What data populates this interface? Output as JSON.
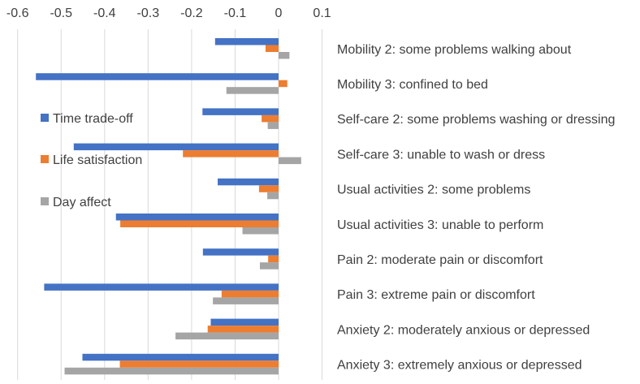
{
  "chart_data": {
    "type": "bar",
    "orientation": "horizontal",
    "title": "",
    "xlabel": "",
    "ylabel": "",
    "xlim": [
      -0.6,
      0.1
    ],
    "x_ticks": [
      "-0.6",
      "-0.5",
      "-0.4",
      "-0.3",
      "-0.2",
      "-0.1",
      "0",
      "0.1"
    ],
    "x_tick_values": [
      -0.6,
      -0.5,
      -0.4,
      -0.3,
      -0.2,
      -0.1,
      0,
      0.1
    ],
    "x_axis_position": "top",
    "grid": true,
    "legend_position": "left",
    "categories": [
      "Mobility 2: some problems walking about",
      "Mobility 3: confined to bed",
      "Self-care 2: some problems washing or dressing",
      "Self-care 3: unable to wash or dress",
      "Usual activities 2: some problems",
      "Usual activities 3: unable to perform",
      "Pain 2: moderate pain or discomfort",
      "Pain 3: extreme pain or discomfort",
      "Anxiety 2: moderately anxious or depressed",
      "Anxiety 3: extremely anxious or depressed"
    ],
    "series": [
      {
        "name": "Time trade-off",
        "color": "#4472c4",
        "values": [
          -0.146,
          -0.558,
          -0.175,
          -0.471,
          -0.14,
          -0.374,
          -0.174,
          -0.539,
          -0.156,
          -0.451
        ]
      },
      {
        "name": "Life satisfaction",
        "color": "#ed7d31",
        "values": [
          -0.03,
          0.02,
          -0.039,
          -0.22,
          -0.045,
          -0.364,
          -0.024,
          -0.131,
          -0.163,
          -0.365
        ]
      },
      {
        "name": "Day affect",
        "color": "#a5a5a5",
        "values": [
          0.025,
          -0.12,
          -0.025,
          0.052,
          -0.026,
          -0.083,
          -0.043,
          -0.151,
          -0.237,
          -0.492
        ]
      }
    ]
  }
}
